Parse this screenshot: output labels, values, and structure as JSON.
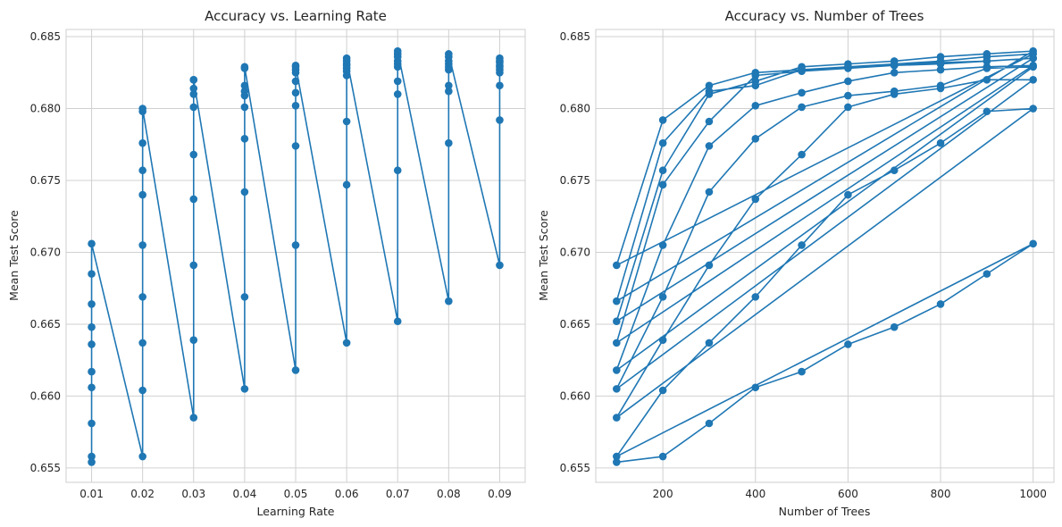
{
  "chart_data": [
    {
      "type": "line",
      "title": "Accuracy vs. Learning Rate",
      "xlabel": "Learning Rate",
      "ylabel": "Mean Test Score",
      "xlim": [
        0.005,
        0.095
      ],
      "ylim": [
        0.654,
        0.6855
      ],
      "xticks": [
        0.01,
        0.02,
        0.03,
        0.04,
        0.05,
        0.06,
        0.07,
        0.08,
        0.09
      ],
      "xtick_labels": [
        "0.01",
        "0.02",
        "0.03",
        "0.04",
        "0.05",
        "0.06",
        "0.07",
        "0.08",
        "0.09"
      ],
      "yticks": [
        0.655,
        0.66,
        0.665,
        0.67,
        0.675,
        0.68,
        0.685
      ],
      "ytick_labels": [
        "0.655",
        "0.660",
        "0.665",
        "0.670",
        "0.675",
        "0.680",
        "0.685"
      ],
      "grid": true,
      "color": "#1f77b4",
      "marker": "circle",
      "series": [
        {
          "x": [
            0.01,
            0.01,
            0.01,
            0.01,
            0.01,
            0.01,
            0.01,
            0.01,
            0.01,
            0.01,
            0.02,
            0.02,
            0.02,
            0.02,
            0.02,
            0.02,
            0.02,
            0.02,
            0.02,
            0.02,
            0.03,
            0.03,
            0.03,
            0.03,
            0.03,
            0.03,
            0.03,
            0.03,
            0.03,
            0.03,
            0.04,
            0.04,
            0.04,
            0.04,
            0.04,
            0.04,
            0.04,
            0.04,
            0.04,
            0.04,
            0.05,
            0.05,
            0.05,
            0.05,
            0.05,
            0.05,
            0.05,
            0.05,
            0.05,
            0.05,
            0.06,
            0.06,
            0.06,
            0.06,
            0.06,
            0.06,
            0.06,
            0.06,
            0.06,
            0.06,
            0.07,
            0.07,
            0.07,
            0.07,
            0.07,
            0.07,
            0.07,
            0.07,
            0.07,
            0.07,
            0.08,
            0.08,
            0.08,
            0.08,
            0.08,
            0.08,
            0.08,
            0.08,
            0.08,
            0.08,
            0.09,
            0.09,
            0.09,
            0.09,
            0.09,
            0.09,
            0.09,
            0.09,
            0.09,
            0.09
          ],
          "y": [
            0.6554,
            0.6558,
            0.6581,
            0.6606,
            0.6617,
            0.6636,
            0.6648,
            0.6664,
            0.6685,
            0.6706,
            0.6558,
            0.6604,
            0.6637,
            0.6669,
            0.6705,
            0.674,
            0.6757,
            0.6776,
            0.6798,
            0.68,
            0.6585,
            0.6639,
            0.6691,
            0.6737,
            0.6768,
            0.6801,
            0.681,
            0.6814,
            0.682,
            0.682,
            0.6605,
            0.6669,
            0.6742,
            0.6779,
            0.6801,
            0.6809,
            0.6812,
            0.6816,
            0.6828,
            0.6829,
            0.6618,
            0.6705,
            0.6774,
            0.6802,
            0.6811,
            0.6819,
            0.6825,
            0.6827,
            0.6829,
            0.683,
            0.6637,
            0.6747,
            0.6791,
            0.6823,
            0.6826,
            0.6828,
            0.683,
            0.6831,
            0.6833,
            0.6835,
            0.6652,
            0.6757,
            0.681,
            0.6819,
            0.6829,
            0.6831,
            0.6833,
            0.6836,
            0.6838,
            0.684,
            0.6666,
            0.6776,
            0.6812,
            0.6816,
            0.6827,
            0.6829,
            0.6831,
            0.6833,
            0.6836,
            0.6838,
            0.6691,
            0.6792,
            0.6816,
            0.6825,
            0.6827,
            0.6829,
            0.683,
            0.6832,
            0.6833,
            0.6835
          ]
        }
      ]
    },
    {
      "type": "line",
      "title": "Accuracy vs. Number of Trees",
      "xlabel": "Number of Trees",
      "ylabel": "Mean Test Score",
      "xlim": [
        55,
        1045
      ],
      "ylim": [
        0.654,
        0.6855
      ],
      "xticks": [
        200,
        400,
        600,
        800,
        1000
      ],
      "xtick_labels": [
        "200",
        "400",
        "600",
        "800",
        "1000"
      ],
      "yticks": [
        0.655,
        0.66,
        0.665,
        0.67,
        0.675,
        0.68,
        0.685
      ],
      "ytick_labels": [
        "0.655",
        "0.660",
        "0.665",
        "0.670",
        "0.675",
        "0.680",
        "0.685"
      ],
      "grid": true,
      "color": "#1f77b4",
      "marker": "circle",
      "series": [
        {
          "x": [
            100,
            200,
            300,
            400,
            500,
            600,
            700,
            800,
            900,
            1000,
            100,
            200,
            300,
            400,
            500,
            600,
            700,
            800,
            900,
            1000,
            100,
            200,
            300,
            400,
            500,
            600,
            700,
            800,
            900,
            1000,
            100,
            200,
            300,
            400,
            500,
            600,
            700,
            800,
            900,
            1000,
            100,
            200,
            300,
            400,
            500,
            600,
            700,
            800,
            900,
            1000,
            100,
            200,
            300,
            400,
            500,
            600,
            700,
            800,
            900,
            1000,
            100,
            200,
            300,
            400,
            500,
            600,
            700,
            800,
            900,
            1000,
            100,
            200,
            300,
            400,
            500,
            600,
            700,
            800,
            900,
            1000,
            100,
            200,
            300,
            400,
            500,
            600,
            700,
            800,
            900,
            1000
          ],
          "y": [
            0.6554,
            0.6558,
            0.6581,
            0.6606,
            0.6617,
            0.6636,
            0.6648,
            0.6664,
            0.6685,
            0.6706,
            0.6558,
            0.6604,
            0.6637,
            0.6669,
            0.6705,
            0.674,
            0.6757,
            0.6776,
            0.6798,
            0.68,
            0.6585,
            0.6639,
            0.6691,
            0.6737,
            0.6768,
            0.6801,
            0.681,
            0.6814,
            0.682,
            0.682,
            0.6605,
            0.6669,
            0.6742,
            0.6779,
            0.6801,
            0.6809,
            0.6812,
            0.6816,
            0.6828,
            0.6829,
            0.6618,
            0.6705,
            0.6774,
            0.6802,
            0.6811,
            0.6819,
            0.6825,
            0.6827,
            0.6829,
            0.683,
            0.6637,
            0.6747,
            0.6791,
            0.6823,
            0.6826,
            0.6828,
            0.683,
            0.6831,
            0.6833,
            0.6835,
            0.6652,
            0.6757,
            0.681,
            0.6819,
            0.6829,
            0.6831,
            0.6833,
            0.6836,
            0.6838,
            0.684,
            0.6666,
            0.6776,
            0.6812,
            0.6816,
            0.6827,
            0.6829,
            0.6831,
            0.6833,
            0.6836,
            0.6838,
            0.6691,
            0.6792,
            0.6816,
            0.6825,
            0.6827,
            0.6829,
            0.683,
            0.6832,
            0.6833,
            0.6835
          ]
        }
      ]
    }
  ]
}
